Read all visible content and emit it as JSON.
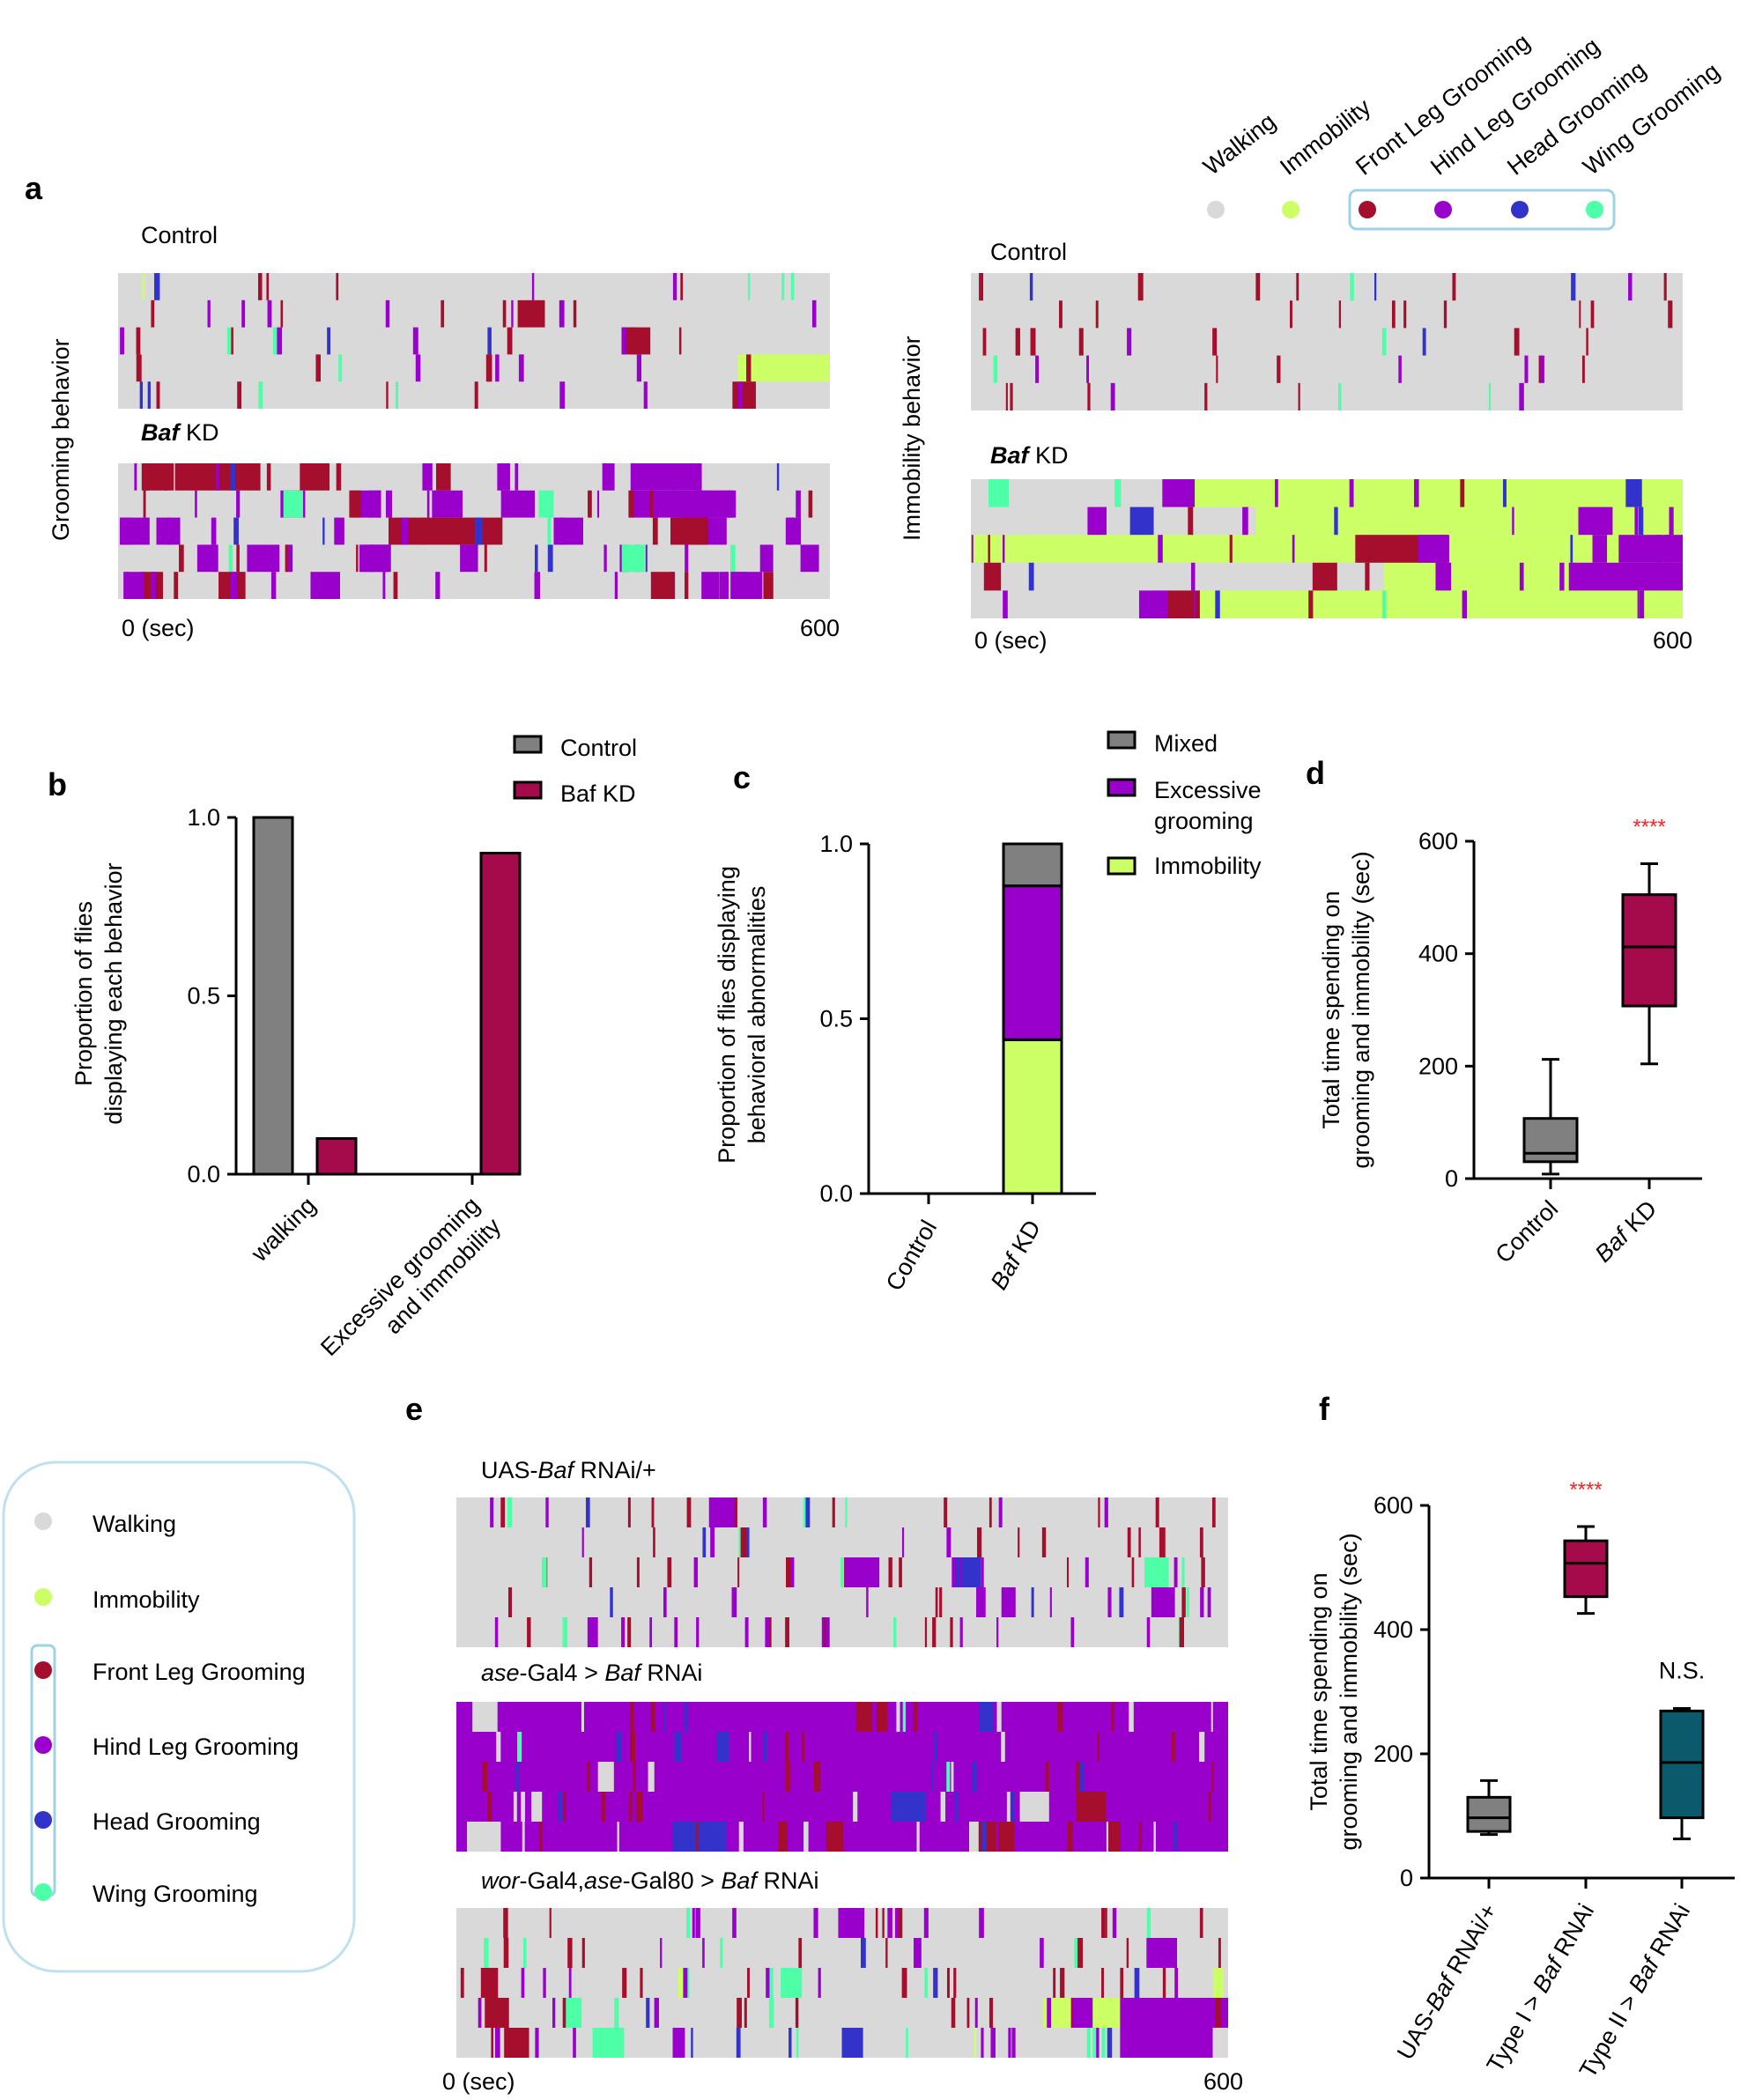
{
  "colors": {
    "walking": "#d9d9d9",
    "immobility": "#ccff66",
    "front_leg": "#a50e2c",
    "hind_leg": "#9900cc",
    "head": "#3333cc",
    "wing": "#4dffa6",
    "control_bar": "#808080",
    "baf_bar": "#a50a4b",
    "type2_box": "#0b5a6b",
    "significance": "#ff2222"
  },
  "panels": {
    "a": "a",
    "b": "b",
    "c": "c",
    "d": "d",
    "e": "e",
    "f": "f"
  },
  "legend_behaviors": [
    "Walking",
    "Immobility",
    "Front Leg Grooming",
    "Hind Leg Grooming",
    "Head Grooming",
    "Wing Grooming"
  ],
  "legend_colors": [
    "#d9d9d9",
    "#ccff66",
    "#a50e2c",
    "#9900cc",
    "#3333cc",
    "#4dffa6"
  ],
  "panel_a": {
    "left_ylabel": "Grooming behavior",
    "right_ylabel": "Immobility behavior",
    "label_control": "Control",
    "label_baf_italic": "Baf",
    "label_baf_rest": " KD",
    "x_start": "0 (sec)",
    "x_end": "600"
  },
  "panel_e": {
    "label1_pre": "UAS-",
    "label1_it": "Baf",
    "label1_post": " RNAi/+",
    "label2_it1": "ase",
    "label2_mid": "-Gal4  > ",
    "label2_it2": "Baf",
    "label2_post": " RNAi",
    "label3_it1": "wor",
    "label3_mid1": "-Gal4,",
    "label3_it2": "ase",
    "label3_mid2": "-Gal80  > ",
    "label3_it3": "Baf",
    "label3_post": " RNAi",
    "x_start": "0 (sec)",
    "x_end": "600"
  },
  "chart_data": [
    {
      "panel": "b",
      "type": "bar",
      "ylabel": "Proportion of flies\ndisplaying each behavior",
      "categories": [
        "walking",
        "Excessive grooming\nand immobility"
      ],
      "series": [
        {
          "name": "Control",
          "values": [
            1.0,
            0.0
          ]
        },
        {
          "name": "Baf KD",
          "values": [
            0.1,
            0.9
          ]
        }
      ],
      "ylim": [
        0,
        1.0
      ],
      "yticks": [
        "0.0",
        "0.5",
        "1.0"
      ],
      "legend": "top-right"
    },
    {
      "panel": "c",
      "type": "bar",
      "stacked": true,
      "ylabel": "Proportion of flies displaying\nbehavioral abnormalities",
      "categories": [
        "Control",
        "Baf KD"
      ],
      "series": [
        {
          "name": "Immobility",
          "values": [
            0,
            0.44
          ]
        },
        {
          "name": "Excessive grooming",
          "values": [
            0,
            0.44
          ]
        },
        {
          "name": "Mixed",
          "values": [
            0,
            0.12
          ]
        }
      ],
      "legend_labels": [
        "Mixed",
        "Excessive",
        "grooming",
        "Immobility"
      ],
      "ylim": [
        0,
        1.0
      ],
      "yticks": [
        "0.0",
        "0.5",
        "1.0"
      ],
      "legend": "top-right"
    },
    {
      "panel": "d",
      "type": "box",
      "ylabel": "Total time spending on\ngrooming and immobility (sec)",
      "categories": [
        "Control",
        "Baf KD"
      ],
      "boxes": [
        {
          "name": "Control",
          "min": 8,
          "q1": 30,
          "median": 45,
          "q3": 107,
          "max": 212
        },
        {
          "name": "Baf KD",
          "min": 204,
          "q1": 307,
          "median": 412,
          "q3": 505,
          "max": 560
        }
      ],
      "significance": [
        "",
        "****"
      ],
      "ylim": [
        0,
        600
      ],
      "yticks": [
        "0",
        "200",
        "400",
        "600"
      ]
    },
    {
      "panel": "f",
      "type": "box",
      "ylabel": "Total time spending on\ngrooming and immobility (sec)",
      "categories": [
        "UAS-Baf RNAi/+",
        "Type I > Baf RNAi",
        "Type II > Baf RNAi"
      ],
      "boxes": [
        {
          "name": "UAS-Baf RNAi/+",
          "min": 70,
          "q1": 75,
          "median": 97,
          "q3": 130,
          "max": 157
        },
        {
          "name": "Type I > Baf RNAi",
          "min": 426,
          "q1": 453,
          "median": 507,
          "q3": 543,
          "max": 566
        },
        {
          "name": "Type II > Baf RNAi",
          "min": 63,
          "q1": 97,
          "median": 186,
          "q3": 269,
          "max": 273
        }
      ],
      "significance": [
        "",
        "****",
        "N.S."
      ],
      "ylim": [
        0,
        600
      ],
      "yticks": [
        "0",
        "200",
        "400",
        "600"
      ]
    }
  ]
}
